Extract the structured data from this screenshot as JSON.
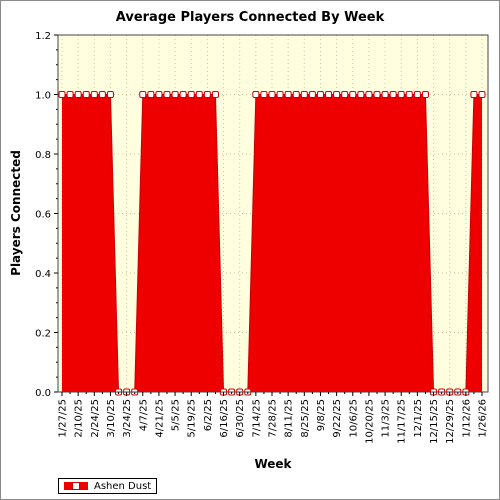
{
  "chart_data": {
    "type": "area",
    "title": "Average Players Connected By Week",
    "xlabel": "Week",
    "ylabel": "Players Connected",
    "ylim": [
      0,
      1.2
    ],
    "yticks": [
      "0.0",
      "0.2",
      "0.4",
      "0.6",
      "0.8",
      "1.0",
      "1.2"
    ],
    "grid": true,
    "legend_position": "bottom-left",
    "x_labels": [
      "1/27/25",
      "2/10/25",
      "2/24/25",
      "3/10/25",
      "3/24/25",
      "4/7/25",
      "4/21/25",
      "5/5/25",
      "5/19/25",
      "6/2/25",
      "6/16/25",
      "6/30/25",
      "7/14/25",
      "7/28/25",
      "8/11/25",
      "8/25/25",
      "9/8/25",
      "9/22/25",
      "10/6/25",
      "10/20/25",
      "11/3/25",
      "11/17/25",
      "12/1/25",
      "12/15/25",
      "12/29/25",
      "1/12/26",
      "1/26/26"
    ],
    "series": [
      {
        "name": "Ashen Dust",
        "color": "#ee0000",
        "x": [
          "1/27/25",
          "2/3/25",
          "2/10/25",
          "2/17/25",
          "2/24/25",
          "3/3/25",
          "3/10/25",
          "3/17/25",
          "3/24/25",
          "3/31/25",
          "4/7/25",
          "4/14/25",
          "4/21/25",
          "4/28/25",
          "5/5/25",
          "5/12/25",
          "5/19/25",
          "5/26/25",
          "6/2/25",
          "6/9/25",
          "6/16/25",
          "6/23/25",
          "6/30/25",
          "7/7/25",
          "7/14/25",
          "7/21/25",
          "7/28/25",
          "8/4/25",
          "8/11/25",
          "8/18/25",
          "8/25/25",
          "9/1/25",
          "9/8/25",
          "9/15/25",
          "9/22/25",
          "9/29/25",
          "10/6/25",
          "10/13/25",
          "10/20/25",
          "10/27/25",
          "11/3/25",
          "11/10/25",
          "11/17/25",
          "11/24/25",
          "12/1/25",
          "12/8/25",
          "12/15/25",
          "12/22/25",
          "12/29/25",
          "1/5/26",
          "1/12/26",
          "1/19/26",
          "1/26/26"
        ],
        "values": [
          1,
          1,
          1,
          1,
          1,
          1,
          1,
          0,
          0,
          0,
          1,
          1,
          1,
          1,
          1,
          1,
          1,
          1,
          1,
          1,
          0,
          0,
          0,
          0,
          1,
          1,
          1,
          1,
          1,
          1,
          1,
          1,
          1,
          1,
          1,
          1,
          1,
          1,
          1,
          1,
          1,
          1,
          1,
          1,
          1,
          1,
          0,
          0,
          0,
          0,
          0,
          1,
          1
        ]
      }
    ]
  }
}
